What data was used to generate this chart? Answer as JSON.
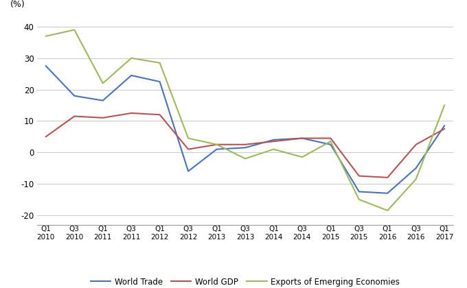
{
  "ylabel": "(%)",
  "ylim": [
    -23,
    43
  ],
  "yticks": [
    -20,
    -10,
    0,
    10,
    20,
    30,
    40
  ],
  "quarters_top": [
    "Q1",
    "Q3",
    "Q1",
    "Q3",
    "Q1",
    "Q3",
    "Q1",
    "Q3",
    "Q1",
    "Q3",
    "Q1",
    "Q3",
    "Q1",
    "Q3",
    "Q1"
  ],
  "quarters_bot": [
    "2010",
    "2010",
    "2011",
    "2011",
    "2012",
    "2012",
    "2013",
    "2013",
    "2014",
    "2014",
    "2015",
    "2015",
    "2016",
    "2016",
    "2017"
  ],
  "world_trade": [
    27.5,
    18.0,
    16.5,
    24.5,
    22.5,
    -6.0,
    1.0,
    1.5,
    4.0,
    4.5,
    2.5,
    -12.5,
    -13.0,
    -5.0,
    8.5
  ],
  "world_gdp": [
    5.0,
    11.5,
    11.0,
    12.5,
    12.0,
    1.0,
    2.5,
    2.5,
    3.5,
    4.5,
    4.5,
    -7.5,
    -8.0,
    2.5,
    7.5
  ],
  "exports_emerging": [
    37.0,
    39.0,
    22.0,
    30.0,
    28.5,
    4.5,
    2.5,
    -2.0,
    1.0,
    -1.5,
    3.5,
    -15.0,
    -18.5,
    -8.5,
    15.0
  ],
  "trade_color": "#4472C4",
  "gdp_color": "#C0504D",
  "exports_color": "#9BBB59",
  "background_color": "#FFFFFF",
  "grid_color": "#C8C8C8",
  "legend_labels": [
    "World Trade",
    "World GDP",
    "Exports of Emerging Economies"
  ]
}
